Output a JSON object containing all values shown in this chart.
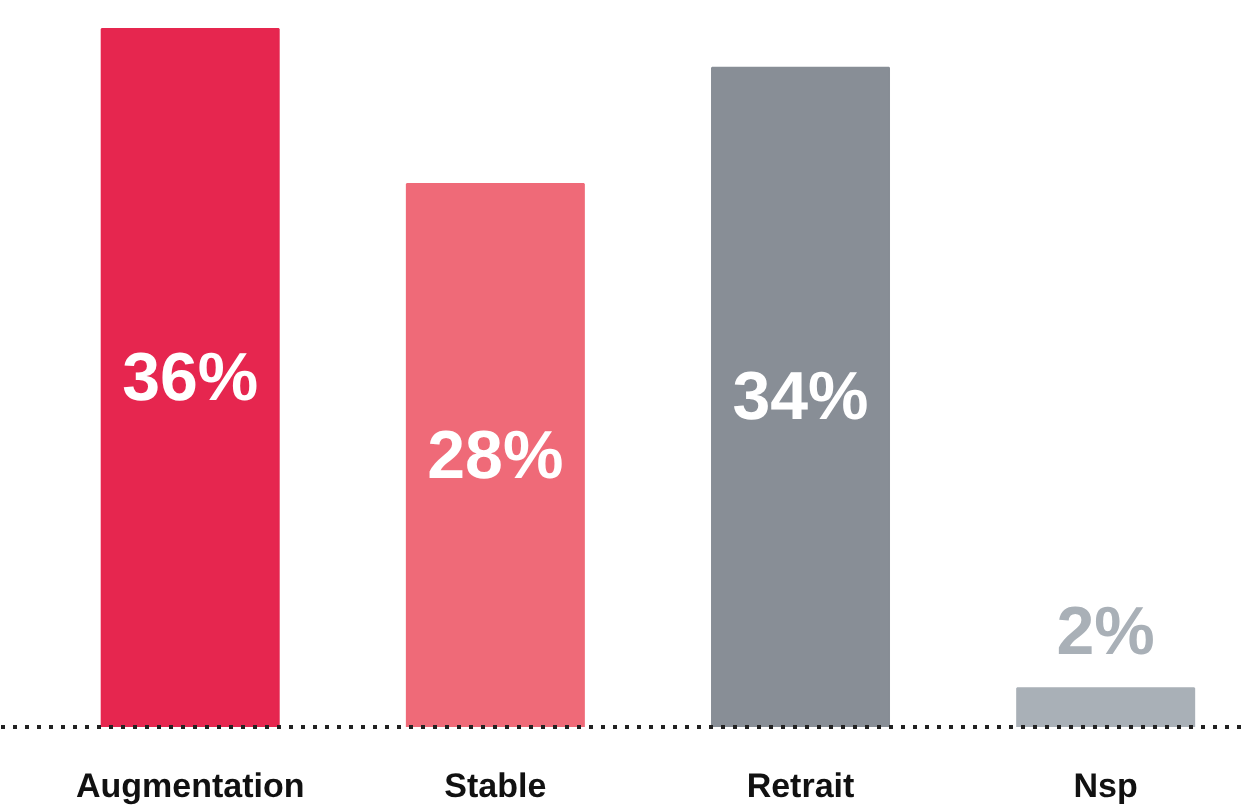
{
  "chart_data": {
    "type": "bar",
    "categories": [
      "Augmentation",
      "Stable",
      "Retrait",
      "Nsp"
    ],
    "values": [
      36,
      28,
      34,
      2
    ],
    "colors": [
      "#e6264f",
      "#ef6a78",
      "#888e96",
      "#a9b0b7"
    ],
    "value_labels": [
      "36%",
      "28%",
      "34%",
      "2%"
    ],
    "grid": false
  }
}
